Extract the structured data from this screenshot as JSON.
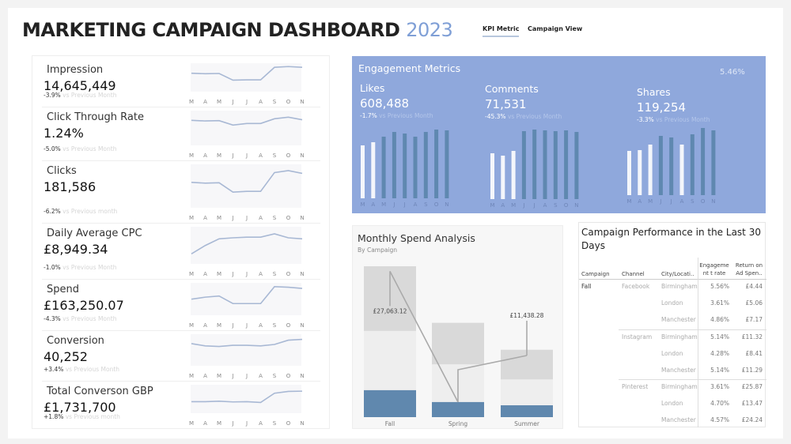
{
  "header": {
    "title": "MARKETING CAMPAIGN DASHBOARD",
    "year": "2023",
    "tabs": [
      {
        "label": "KPI Metric",
        "active": true
      },
      {
        "label": "Campaign View",
        "active": false
      }
    ]
  },
  "months": [
    "M",
    "A",
    "M",
    "J",
    "J",
    "A",
    "S",
    "O",
    "N"
  ],
  "vs_label": "vs Previous Month",
  "kpis": [
    {
      "label": "Impression",
      "value": "14,645,449",
      "change": "-3.9%",
      "vs": "vs Previous Month",
      "trend": [
        72,
        70,
        71,
        45,
        46,
        46,
        95,
        98,
        95
      ]
    },
    {
      "label": "Click Through Rate",
      "value": "1.24%",
      "change": "-5.0%",
      "vs": "vs Previous Month",
      "trend": [
        80,
        78,
        79,
        65,
        70,
        70,
        85,
        90,
        82
      ]
    },
    {
      "label": "Clicks",
      "value": "181,586",
      "change": "-6.2%",
      "vs": "vs Previous month",
      "trend": [
        65,
        63,
        64,
        40,
        42,
        42,
        90,
        95,
        88
      ]
    },
    {
      "label": "Daily Average CPC",
      "value": "£8,949.34",
      "change": "-1.0%",
      "vs": "vs Previous Month",
      "trend": [
        30,
        55,
        75,
        78,
        80,
        80,
        90,
        78,
        75
      ]
    },
    {
      "label": "Spend",
      "value": "£163,250.07",
      "change": "-4.3%",
      "vs": "vs Previous Month",
      "trend": [
        55,
        62,
        66,
        40,
        40,
        40,
        98,
        96,
        92
      ]
    },
    {
      "label": "Conversion",
      "value": "40,252",
      "change": "+3.4%",
      "vs": "vs Previous Month",
      "trend": [
        78,
        70,
        68,
        72,
        72,
        70,
        75,
        90,
        93
      ]
    },
    {
      "label": "Total Converson GBP",
      "value": "£1,731,700",
      "change": "+1.8%",
      "vs": "vs Previous month",
      "trend": [
        45,
        45,
        47,
        44,
        45,
        42,
        78,
        85,
        86
      ]
    }
  ],
  "engagement": {
    "title": "Engagement Metrics",
    "rate": "5.46%",
    "colors": {
      "highlight": "#f4f6fb",
      "base": "#5f88b0"
    },
    "metrics": [
      {
        "label": "Likes",
        "value": "608,488",
        "change": "-1.7%",
        "vs": "vs Previous Month",
        "bars": [
          67,
          71,
          78,
          84,
          82,
          78,
          84,
          87,
          86
        ],
        "highlight": [
          0,
          1
        ]
      },
      {
        "label": "Comments",
        "value": "71,531",
        "change": "-45.3%",
        "vs": "vs Previous Month",
        "bars": [
          58,
          55,
          61,
          86,
          88,
          87,
          86,
          87,
          85
        ],
        "highlight": [
          0,
          1,
          2
        ]
      },
      {
        "label": "Shares",
        "value": "119,254",
        "change": "-3.3%",
        "vs": "vs Previous Month",
        "bars": [
          56,
          57,
          64,
          75,
          73,
          64,
          77,
          85,
          82
        ],
        "highlight": [
          0,
          1,
          2,
          5
        ]
      }
    ]
  },
  "chart_data": {
    "type": "bar",
    "title": "Monthly Spend Analysis",
    "subtitle": "By Campaign",
    "categories": [
      "Fall",
      "Spring",
      "Summer"
    ],
    "ylim": [
      0,
      28000
    ],
    "range_high": [
      28000,
      17500,
      12500
    ],
    "range_low": [
      16000,
      9800,
      7000
    ],
    "actual": [
      5000,
      2800,
      2200
    ],
    "line": [
      27063.12,
      2800,
      11438.28
    ],
    "labels": [
      "£27,063.12",
      "",
      "£11,438.28"
    ],
    "colors": {
      "range": "#d9d9d9",
      "background": "#eeeeee",
      "actual": "#6088ae",
      "line": "#aaaaaa"
    }
  },
  "table": {
    "title": "Campaign Performance in the Last 30 Days",
    "columns": [
      "Campaign",
      "Channel",
      "City/Locati..",
      "Engageme nt t rate",
      "Return on Ad Spen.."
    ],
    "campaign": "Fall",
    "groups": [
      {
        "channel": "Facebook",
        "rows": [
          [
            "Birmingham",
            "5.56%",
            "£4.44"
          ],
          [
            "London",
            "3.61%",
            "£5.06"
          ],
          [
            "Manchester",
            "4.86%",
            "£7.17"
          ]
        ]
      },
      {
        "channel": "Instagram",
        "rows": [
          [
            "Birmingham",
            "5.14%",
            "£11.32"
          ],
          [
            "London",
            "4.28%",
            "£8.41"
          ],
          [
            "Manchester",
            "5.14%",
            "£11.29"
          ]
        ]
      },
      {
        "channel": "Pinterest",
        "rows": [
          [
            "Birmingham",
            "3.61%",
            "£25.87"
          ],
          [
            "London",
            "4.70%",
            "£13.47"
          ],
          [
            "Manchester",
            "4.57%",
            "£24.24"
          ]
        ]
      }
    ]
  }
}
